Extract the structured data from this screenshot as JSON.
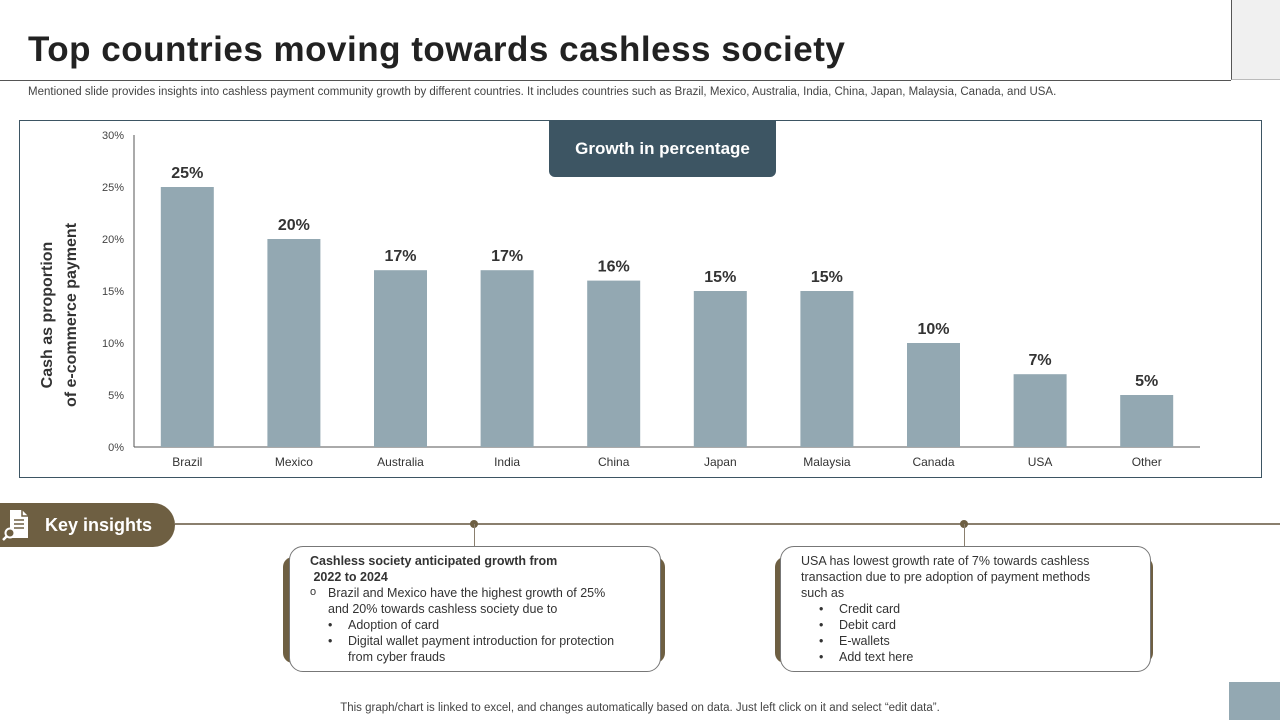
{
  "title": "Top countries moving towards cashless society",
  "subtitle": "Mentioned slide provides insights into cashless payment community growth by different countries. It includes countries such as Brazil, Mexico, Australia, India, China, Japan, Malaysia, Canada, and USA.",
  "legend_label": "Growth in percentage",
  "chart_data": {
    "type": "bar",
    "title": "Growth in percentage",
    "categories": [
      "Brazil",
      "Mexico",
      "Australia",
      "India",
      "China",
      "Japan",
      "Malaysia",
      "Canada",
      "USA",
      "Other"
    ],
    "values": [
      25,
      20,
      17,
      17,
      16,
      15,
      15,
      10,
      7,
      5
    ],
    "data_labels": [
      "25%",
      "20%",
      "17%",
      "17%",
      "16%",
      "15%",
      "15%",
      "10%",
      "7%",
      "5%"
    ],
    "ylabel": [
      "Cash as proportion",
      "of e-commerce payment"
    ],
    "xlabel": "",
    "ylim": [
      0,
      30
    ],
    "yticks": [
      0,
      5,
      10,
      15,
      20,
      25,
      30
    ],
    "ytick_labels": [
      "0%",
      "5%",
      "10%",
      "15%",
      "20%",
      "25%",
      "30%"
    ],
    "bar_color": "#93a8b2",
    "grid": false
  },
  "insights": {
    "label": "Key insights",
    "icon": "document-search-icon",
    "card1": {
      "heading_line1": "Cashless  society  anticipated growth from",
      "heading_line2": " 2022 to 2024",
      "point_line1": "Brazil and Mexico have  the highest growth  of 25%",
      "point_line2": "and 20% towards cashless society due to",
      "bullets": [
        [
          "Adoption of card"
        ],
        [
          "Digital wallet payment introduction for protection",
          "from cyber frauds"
        ]
      ]
    },
    "card2": {
      "lines": [
        "USA has lowest growth  rate of 7% towards cashless",
        "transaction due to pre adoption of payment methods",
        "such as"
      ],
      "bullets": [
        "Credit card",
        "Debit card",
        "E-wallets",
        "Add text here"
      ]
    }
  },
  "footer": "This graph/chart is linked to excel,  and changes automatically based on data. Just left click on it and select “edit data”.",
  "colors": {
    "accent_dark": "#3d5563",
    "bar": "#93a8b2",
    "brown": "#6e5f42"
  }
}
